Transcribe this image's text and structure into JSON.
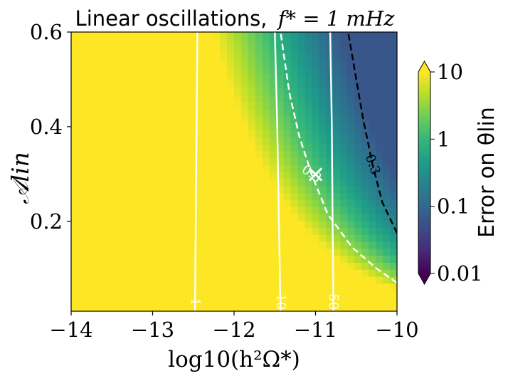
{
  "chart_data": {
    "type": "heatmap",
    "title_text": "Linear oscillations,",
    "title_math": "f* = 1 mHz",
    "xlabel": "log10(h²Ω*)",
    "ylabel": "𝒜lin",
    "xlim": [
      -14,
      -10
    ],
    "ylim": [
      0.01,
      0.6
    ],
    "x_ticks": [
      -14,
      -13,
      -12,
      -11,
      -10
    ],
    "x_tick_labels": [
      "−14",
      "−13",
      "−12",
      "−11",
      "−10"
    ],
    "y_ticks": [
      0.2,
      0.4,
      0.6
    ],
    "y_tick_labels": [
      "0.2",
      "0.4",
      "0.6"
    ],
    "colorbar": {
      "label": "Error on θlin",
      "scale": "log",
      "range": [
        0.01,
        10
      ],
      "ticks": [
        0.01,
        0.1,
        1,
        10
      ],
      "tick_labels": [
        "0.01",
        "0.1",
        "1",
        "10"
      ],
      "extend": "both",
      "colormap": "viridis"
    },
    "contours": [
      {
        "label": "1",
        "style": "solid",
        "color": "#ffffff",
        "points": [
          [
            -12.48,
            0.01
          ],
          [
            -12.47,
            0.2
          ],
          [
            -12.46,
            0.4
          ],
          [
            -12.45,
            0.6
          ]
        ]
      },
      {
        "label": "10",
        "style": "solid",
        "color": "#ffffff",
        "points": [
          [
            -11.43,
            0.01
          ],
          [
            -11.45,
            0.2
          ],
          [
            -11.47,
            0.4
          ],
          [
            -11.5,
            0.6
          ]
        ]
      },
      {
        "label": "50",
        "style": "solid",
        "color": "#ffffff",
        "points": [
          [
            -10.78,
            0.01
          ],
          [
            -10.79,
            0.2
          ],
          [
            -10.8,
            0.4
          ],
          [
            -10.82,
            0.6
          ]
        ]
      },
      {
        "label": "0.3",
        "style": "dashed",
        "color": "#ffffff",
        "points": [
          [
            -10.0,
            0.07
          ],
          [
            -10.25,
            0.1
          ],
          [
            -10.55,
            0.145
          ],
          [
            -10.85,
            0.215
          ],
          [
            -11.05,
            0.3
          ],
          [
            -11.2,
            0.38
          ],
          [
            -11.32,
            0.47
          ],
          [
            -11.43,
            0.6
          ]
        ]
      },
      {
        "label": "0.3",
        "style": "dashed",
        "color": "#000000",
        "points": [
          [
            -10.0,
            0.175
          ],
          [
            -10.18,
            0.24
          ],
          [
            -10.3,
            0.32
          ],
          [
            -10.42,
            0.42
          ],
          [
            -10.52,
            0.52
          ],
          [
            -10.6,
            0.6
          ]
        ]
      }
    ],
    "marker": {
      "symbol": "×",
      "x": -11.0,
      "y": 0.3,
      "color": "#ffffff"
    },
    "fiducial_regions": "yellow (error ≥10) for log10(h²Ω*) < about -12; decreasing to about 0.1 in the upper-right corner"
  }
}
